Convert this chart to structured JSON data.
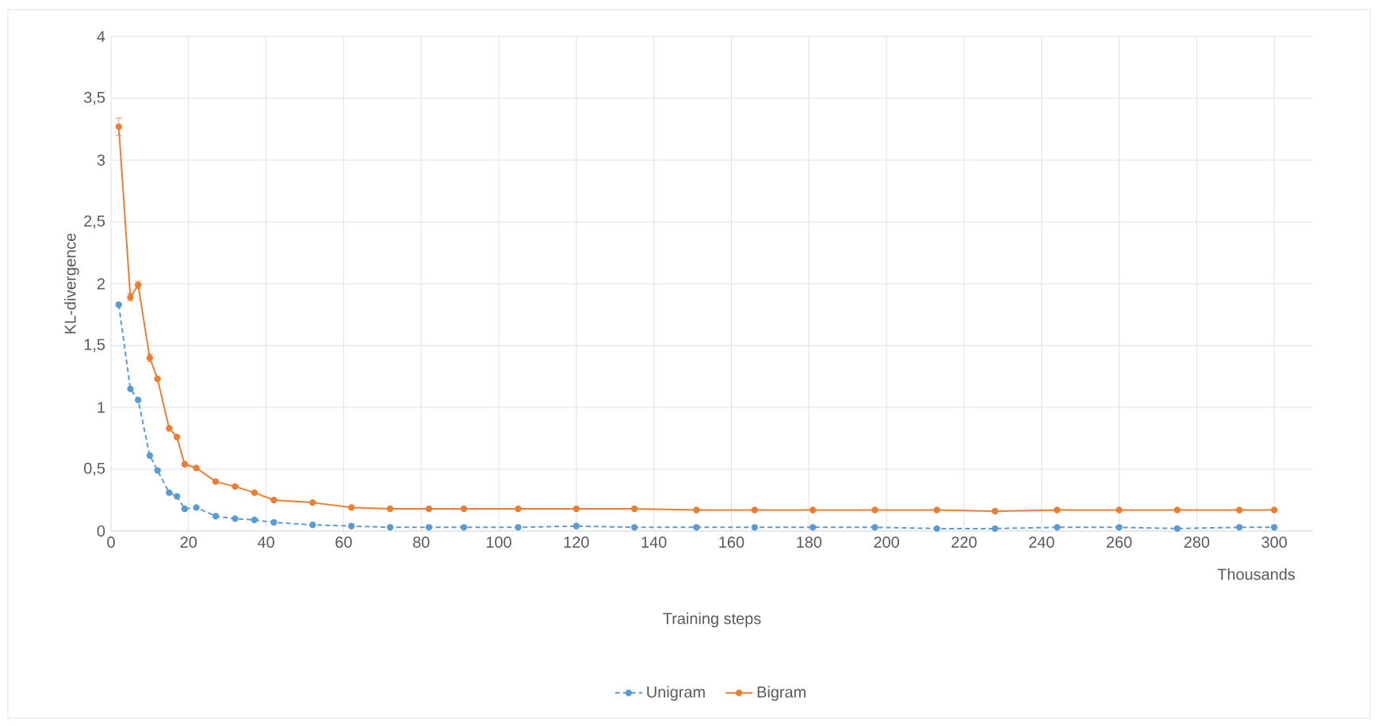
{
  "chart_data": {
    "type": "line",
    "xlabel": "Training steps",
    "ylabel": "KL-divergence",
    "annotations": [
      "Thousands"
    ],
    "x": [
      2,
      5,
      7,
      10,
      12,
      15,
      17,
      19,
      22,
      27,
      32,
      37,
      42,
      52,
      62,
      72,
      82,
      91,
      105,
      120,
      135,
      151,
      166,
      181,
      197,
      213,
      228,
      244,
      260,
      275,
      291,
      300
    ],
    "series": [
      {
        "name": "Unigram",
        "color": "#5b9bd5",
        "line_style": "dashed",
        "values": [
          1.83,
          1.15,
          1.06,
          0.61,
          0.49,
          0.31,
          0.28,
          0.18,
          0.19,
          0.12,
          0.1,
          0.09,
          0.07,
          0.05,
          0.04,
          0.03,
          0.03,
          0.03,
          0.03,
          0.04,
          0.03,
          0.03,
          0.03,
          0.03,
          0.03,
          0.02,
          0.02,
          0.03,
          0.03,
          0.02,
          0.03,
          0.03
        ]
      },
      {
        "name": "Bigram",
        "color": "#ed7d31",
        "line_style": "solid",
        "values": [
          3.27,
          1.89,
          1.99,
          1.4,
          1.23,
          0.83,
          0.76,
          0.54,
          0.51,
          0.4,
          0.36,
          0.31,
          0.25,
          0.23,
          0.19,
          0.18,
          0.18,
          0.18,
          0.18,
          0.18,
          0.18,
          0.17,
          0.17,
          0.17,
          0.17,
          0.17,
          0.16,
          0.17,
          0.17,
          0.17,
          0.17,
          0.17
        ],
        "errors": [
          0.07,
          0.03,
          0.03,
          0.03,
          null,
          null,
          null,
          null,
          null,
          null,
          null,
          null,
          null,
          null,
          null,
          null,
          null,
          null,
          null,
          null,
          null,
          null,
          null,
          null,
          null,
          null,
          null,
          null,
          null,
          null,
          null,
          null
        ]
      }
    ],
    "xlim": [
      0,
      310
    ],
    "ylim": [
      0,
      4
    ],
    "xticks": [
      0,
      20,
      40,
      60,
      80,
      100,
      120,
      140,
      160,
      180,
      200,
      220,
      240,
      260,
      280,
      300
    ],
    "yticks": [
      0,
      {
        "value": 0.5,
        "label": "0,5"
      },
      1,
      {
        "value": 1.5,
        "label": "1,5"
      },
      2,
      {
        "value": 2.5,
        "label": "2,5"
      },
      3,
      {
        "value": 3.5,
        "label": "3,5"
      },
      4
    ],
    "grid": true,
    "legend": "bottom",
    "marker": "circle"
  }
}
